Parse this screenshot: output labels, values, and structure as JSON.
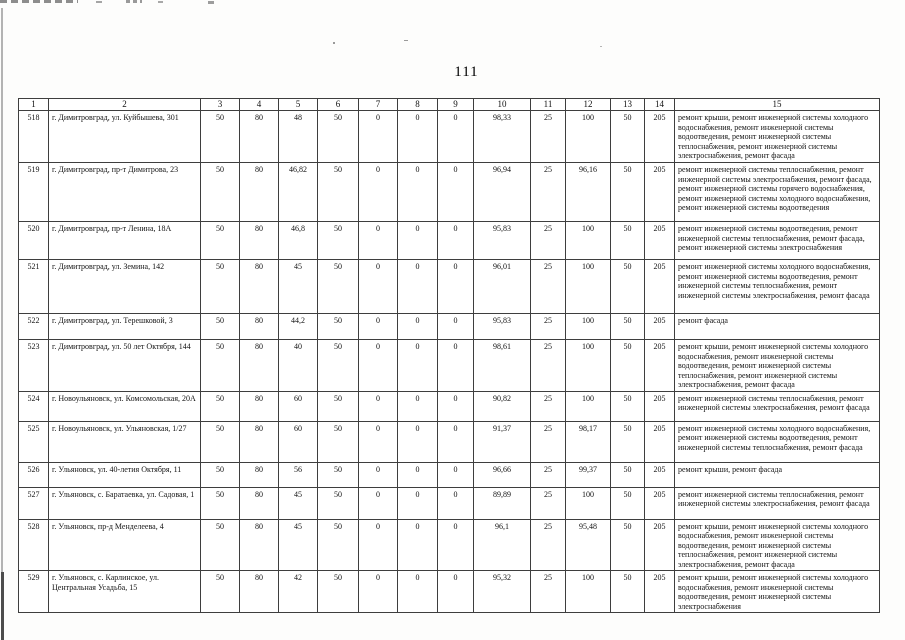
{
  "page": {
    "number": "111"
  },
  "table": {
    "headers": [
      "1",
      "2",
      "3",
      "4",
      "5",
      "6",
      "7",
      "8",
      "9",
      "10",
      "11",
      "12",
      "13",
      "14",
      "15"
    ],
    "rows": [
      [
        "518",
        "г. Димитровград, ул. Куйбышева, 301",
        "50",
        "80",
        "48",
        "50",
        "0",
        "0",
        "0",
        "98,33",
        "25",
        "100",
        "50",
        "205",
        "ремонт крыши, ремонт инженерной системы холодного водоснабжения, ремонт инженерной системы водоотведения, ремонт инженерной системы теплоснабжения, ремонт инженерной системы электроснабжения, ремонт фасада"
      ],
      [
        "519",
        "г. Димитровград, пр-т Димитрова, 23",
        "50",
        "80",
        "46,82",
        "50",
        "0",
        "0",
        "0",
        "96,94",
        "25",
        "96,16",
        "50",
        "205",
        "ремонт инженерной системы теплоснабжения, ремонт инженерной системы электроснабжения, ремонт фасада, ремонт инженерной системы горячего водоснабжения, ремонт инженерной системы холодного водоснабжения, ремонт инженерной системы водоотведения"
      ],
      [
        "520",
        "г. Димитровград, пр-т Ленина, 18А",
        "50",
        "80",
        "46,8",
        "50",
        "0",
        "0",
        "0",
        "95,83",
        "25",
        "100",
        "50",
        "205",
        "ремонт инженерной системы водоотведения, ремонт инженерной системы теплоснабжения, ремонт фасада, ремонт инженерной системы электроснабжения"
      ],
      [
        "521",
        "г. Димитровград, ул. Земина, 142",
        "50",
        "80",
        "45",
        "50",
        "0",
        "0",
        "0",
        "96,01",
        "25",
        "100",
        "50",
        "205",
        "ремонт инженерной системы холодного водоснабжения, ремонт инженерной системы водоотведения, ремонт инженерной системы теплоснабжения, ремонт инженерной системы электроснабжения, ремонт фасада"
      ],
      [
        "522",
        "г. Димитровград, ул. Терешковой, 3",
        "50",
        "80",
        "44,2",
        "50",
        "0",
        "0",
        "0",
        "95,83",
        "25",
        "100",
        "50",
        "205",
        "ремонт фасада"
      ],
      [
        "523",
        "г. Димитровград, ул. 50 лет Октября, 144",
        "50",
        "80",
        "40",
        "50",
        "0",
        "0",
        "0",
        "98,61",
        "25",
        "100",
        "50",
        "205",
        "ремонт крыши, ремонт инженерной системы холодного водоснабжения, ремонт инженерной системы водоотведения, ремонт инженерной системы теплоснабжения, ремонт инженерной системы электроснабжения, ремонт фасада"
      ],
      [
        "524",
        "г. Новоульяновск, ул. Комсомольская, 20А",
        "50",
        "80",
        "60",
        "50",
        "0",
        "0",
        "0",
        "90,82",
        "25",
        "100",
        "50",
        "205",
        "ремонт инженерной системы теплоснабжения, ремонт инженерной системы электроснабжения, ремонт фасада"
      ],
      [
        "525",
        "г. Новоульяновск, ул. Ульяновская, 1/27",
        "50",
        "80",
        "60",
        "50",
        "0",
        "0",
        "0",
        "91,37",
        "25",
        "98,17",
        "50",
        "205",
        "ремонт инженерной системы холодного водоснабжения, ремонт инженерной системы водоотведения, ремонт инженерной системы теплоснабжения, ремонт фасада"
      ],
      [
        "526",
        "г. Ульяновск, ул. 40-летия Октября, 11",
        "50",
        "80",
        "56",
        "50",
        "0",
        "0",
        "0",
        "96,66",
        "25",
        "99,37",
        "50",
        "205",
        "ремонт крыши, ремонт фасада"
      ],
      [
        "527",
        "г. Ульяновск, с. Баратаевка, ул. Садовая, 1",
        "50",
        "80",
        "45",
        "50",
        "0",
        "0",
        "0",
        "89,89",
        "25",
        "100",
        "50",
        "205",
        "ремонт инженерной системы теплоснабжения, ремонт инженерной системы электроснабжения, ремонт фасада"
      ],
      [
        "528",
        "г. Ульяновск, пр-д Менделеева, 4",
        "50",
        "80",
        "45",
        "50",
        "0",
        "0",
        "0",
        "96,1",
        "25",
        "95,48",
        "50",
        "205",
        "ремонт крыши, ремонт инженерной системы холодного водоснабжения, ремонт инженерной системы водоотведения, ремонт инженерной системы теплоснабжения, ремонт инженерной системы электроснабжения, ремонт фасада"
      ],
      [
        "529",
        "г. Ульяновск, с. Карлинское, ул. Центральная Усадьба, 15",
        "50",
        "80",
        "42",
        "50",
        "0",
        "0",
        "0",
        "95,32",
        "25",
        "100",
        "50",
        "205",
        "ремонт крыши, ремонт инженерной системы холодного водоснабжения, ремонт инженерной системы водоотведения, ремонт инженерной системы электроснабжения"
      ]
    ]
  }
}
